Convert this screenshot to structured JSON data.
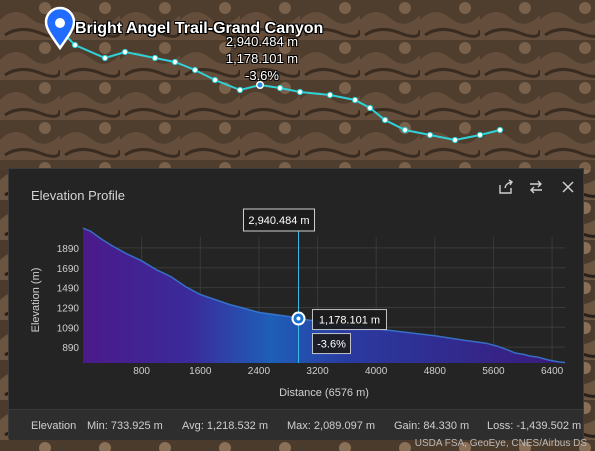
{
  "map": {
    "trail_name": "Bright Angel Trail-Grand Canyon",
    "callout_lines": [
      "2,940.484 m",
      "1,178.101 m",
      "-3.6%"
    ],
    "attribution": "USDA FSA, GeoEye, CNES/Airbus DS",
    "colors": {
      "trail": "#2fd2d8",
      "marker": "#1f6cff"
    },
    "icons": [
      "map-pin-icon"
    ]
  },
  "panel": {
    "title": "Elevation Profile",
    "icons": [
      "share-icon",
      "swap-icon",
      "close-icon"
    ]
  },
  "chart_data": {
    "type": "area",
    "xlabel": "Distance (6576 m)",
    "ylabel": "Elevation (m)",
    "x_ticks": [
      800,
      1600,
      2400,
      3200,
      4000,
      4800,
      5600,
      6400
    ],
    "y_ticks": [
      890,
      1090,
      1290,
      1490,
      1690,
      1890
    ],
    "xlim": [
      0,
      6576
    ],
    "ylim": [
      730,
      2000
    ],
    "grid": true,
    "x": [
      0,
      100,
      250,
      400,
      600,
      800,
      1000,
      1200,
      1400,
      1600,
      1800,
      2000,
      2200,
      2400,
      2600,
      2800,
      2940,
      3100,
      3300,
      3600,
      4000,
      4400,
      4800,
      5200,
      5500,
      5650,
      5800,
      5900,
      6000,
      6100,
      6200,
      6350,
      6500,
      6576
    ],
    "y": [
      2089,
      2060,
      1980,
      1910,
      1830,
      1760,
      1670,
      1600,
      1500,
      1420,
      1370,
      1320,
      1280,
      1240,
      1220,
      1200,
      1178,
      1160,
      1140,
      1110,
      1075,
      1040,
      1005,
      960,
      930,
      900,
      860,
      830,
      820,
      800,
      790,
      760,
      740,
      734
    ],
    "cursor": {
      "distance_label": "2,940.484 m",
      "elevation_label": "1,178.101 m",
      "slope_label": "-3.6%",
      "distance": 2940,
      "elevation": 1178
    },
    "colors": {
      "fill_start": "#4b1a8a",
      "fill_mid": "#1e5fb8",
      "fill_end": "#3a1a7a",
      "cursor": "#38b8e6"
    }
  },
  "stats": {
    "label": "Elevation",
    "min": "Min: 733.925 m",
    "avg": "Avg: 1,218.532 m",
    "max": "Max: 2,089.097 m",
    "gain": "Gain: 84.330 m",
    "loss": "Loss: -1,439.502 m"
  }
}
